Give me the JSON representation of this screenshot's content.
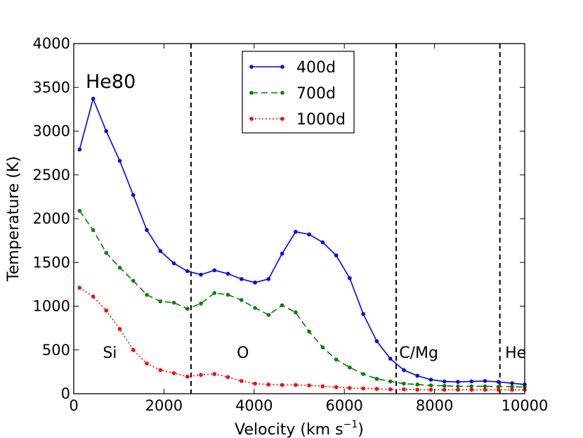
{
  "chart_data": {
    "type": "line",
    "title": "He80",
    "xlabel": "Velocity (km s",
    "xlabel_sup": "−1",
    "xlabel_suffix": ")",
    "ylabel": "Temperature (K)",
    "xlim": [
      0,
      10000
    ],
    "ylim": [
      0,
      4000
    ],
    "x_ticks": [
      0,
      2000,
      4000,
      6000,
      8000,
      10000
    ],
    "y_ticks": [
      0,
      500,
      1000,
      1500,
      2000,
      2500,
      3000,
      3500,
      4000
    ],
    "legend_position": "top-center",
    "x": [
      130,
      430,
      720,
      1020,
      1320,
      1620,
      1920,
      2220,
      2520,
      2820,
      3120,
      3420,
      3720,
      4020,
      4320,
      4620,
      4920,
      5220,
      5520,
      5820,
      6120,
      6420,
      6720,
      7020,
      7320,
      7620,
      7920,
      8220,
      8520,
      8820,
      9120,
      9420,
      9720,
      10000
    ],
    "series": [
      {
        "name": "400d",
        "color": "#0000ff",
        "style": "solid",
        "values": [
          2790,
          3370,
          3000,
          2660,
          2270,
          1870,
          1630,
          1490,
          1400,
          1360,
          1410,
          1370,
          1310,
          1270,
          1310,
          1600,
          1850,
          1820,
          1730,
          1580,
          1320,
          910,
          600,
          400,
          270,
          205,
          160,
          140,
          135,
          140,
          145,
          135,
          120,
          105
        ]
      },
      {
        "name": "700d",
        "color": "#008000",
        "style": "dashed",
        "values": [
          2090,
          1870,
          1610,
          1440,
          1290,
          1130,
          1055,
          1040,
          970,
          1030,
          1150,
          1130,
          1070,
          980,
          900,
          1010,
          930,
          710,
          530,
          390,
          300,
          225,
          170,
          140,
          115,
          105,
          95,
          90,
          85,
          85,
          85,
          80,
          80,
          75
        ]
      },
      {
        "name": "1000d",
        "color": "#ff0000",
        "style": "dotted",
        "values": [
          1210,
          1110,
          950,
          740,
          500,
          345,
          270,
          235,
          195,
          215,
          225,
          190,
          145,
          115,
          105,
          100,
          100,
          95,
          85,
          75,
          65,
          60,
          55,
          50,
          50,
          45,
          45,
          45,
          45,
          45,
          45,
          45,
          45,
          45
        ]
      }
    ],
    "vertical_lines": [
      2600,
      7150,
      9450
    ],
    "region_labels": [
      {
        "text": "Si",
        "x": 800,
        "y": 410
      },
      {
        "text": "O",
        "x": 3750,
        "y": 410
      },
      {
        "text": "C/Mg",
        "x": 7650,
        "y": 410
      },
      {
        "text": "He",
        "x": 9800,
        "y": 410
      }
    ]
  }
}
